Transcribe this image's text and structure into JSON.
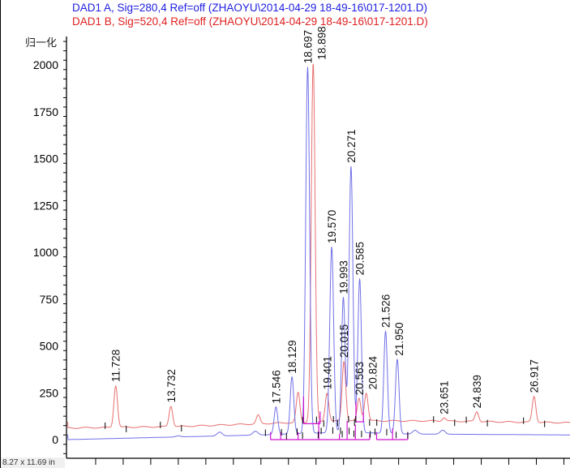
{
  "chart_data": {
    "type": "line",
    "title": "",
    "legend": [
      {
        "text": "DAD1 A, Sig=280,4 Ref=off (ZHAOYU\\2014-04-29 18-49-16\\017-1201.D)",
        "color": "#2020e0"
      },
      {
        "text": "DAD1 B, Sig=520,4 Ref=off (ZHAOYU\\2014-04-29 18-49-16\\017-1201.D)",
        "color": "#e02020"
      }
    ],
    "legend_placement": "top-left",
    "ylabel": "归一化",
    "xlabel": "",
    "ylim": [
      -100,
      2170
    ],
    "xlim": [
      10,
      28.25
    ],
    "yticks": [
      "0",
      "250",
      "500",
      "750",
      "1000",
      "1250",
      "1500",
      "1750",
      "2000"
    ],
    "grid": false,
    "series": [
      {
        "name": "DAD1 A",
        "color": "#7070e8",
        "baseline": [
          [
            10,
            0
          ],
          [
            17,
            25
          ],
          [
            20,
            40
          ],
          [
            22.3,
            30
          ],
          [
            28.25,
            25
          ]
        ],
        "peaks": [
          {
            "rt": 14.0,
            "height": 20,
            "label": null
          },
          {
            "rt": 15.5,
            "height": 40,
            "label": null
          },
          {
            "rt": 16.8,
            "height": 45,
            "label": null
          },
          {
            "rt": 17.546,
            "height": 175,
            "label": "17.546"
          },
          {
            "rt": 18.129,
            "height": 335,
            "label": "18.129"
          },
          {
            "rt": 18.697,
            "height": 1990,
            "label": "18.697"
          },
          {
            "rt": 19.57,
            "height": 1030,
            "label": "19.570"
          },
          {
            "rt": 19.993,
            "height": 760,
            "label": "19.993"
          },
          {
            "rt": 20.271,
            "height": 1460,
            "label": "20.271"
          },
          {
            "rt": 20.585,
            "height": 860,
            "label": "20.585"
          },
          {
            "rt": 21.526,
            "height": 580,
            "label": "21.526"
          },
          {
            "rt": 21.95,
            "height": 430,
            "label": "21.950"
          },
          {
            "rt": 22.6,
            "height": 50,
            "label": null
          },
          {
            "rt": 23.6,
            "height": 50,
            "label": null
          }
        ]
      },
      {
        "name": "DAD1 B",
        "color": "#e87070",
        "baseline": [
          [
            10,
            62
          ],
          [
            14,
            70
          ],
          [
            17,
            85
          ],
          [
            20,
            100
          ],
          [
            23,
            100
          ],
          [
            28.25,
            90
          ]
        ],
        "peaks": [
          {
            "rt": 11.728,
            "height": 290,
            "label": "11.728"
          },
          {
            "rt": 13.732,
            "height": 180,
            "label": "13.732"
          },
          {
            "rt": 16.9,
            "height": 130,
            "label": null
          },
          {
            "rt": 18.35,
            "height": 250,
            "label": null
          },
          {
            "rt": 18.898,
            "height": 2010,
            "label": "18.898"
          },
          {
            "rt": 19.401,
            "height": 250,
            "label": "19.401"
          },
          {
            "rt": 20.015,
            "height": 420,
            "label": "20.015"
          },
          {
            "rt": 20.563,
            "height": 220,
            "label": "20.563"
          },
          {
            "rt": 20.824,
            "height": 250,
            "label": "20.824"
          },
          {
            "rt": 23.651,
            "height": 118,
            "label": "23.651"
          },
          {
            "rt": 24.839,
            "height": 150,
            "label": "24.839"
          },
          {
            "rt": 26.917,
            "height": 232,
            "label": "26.917"
          }
        ]
      }
    ]
  },
  "status_bar": {
    "text": "8.27 x 11.69 in"
  }
}
